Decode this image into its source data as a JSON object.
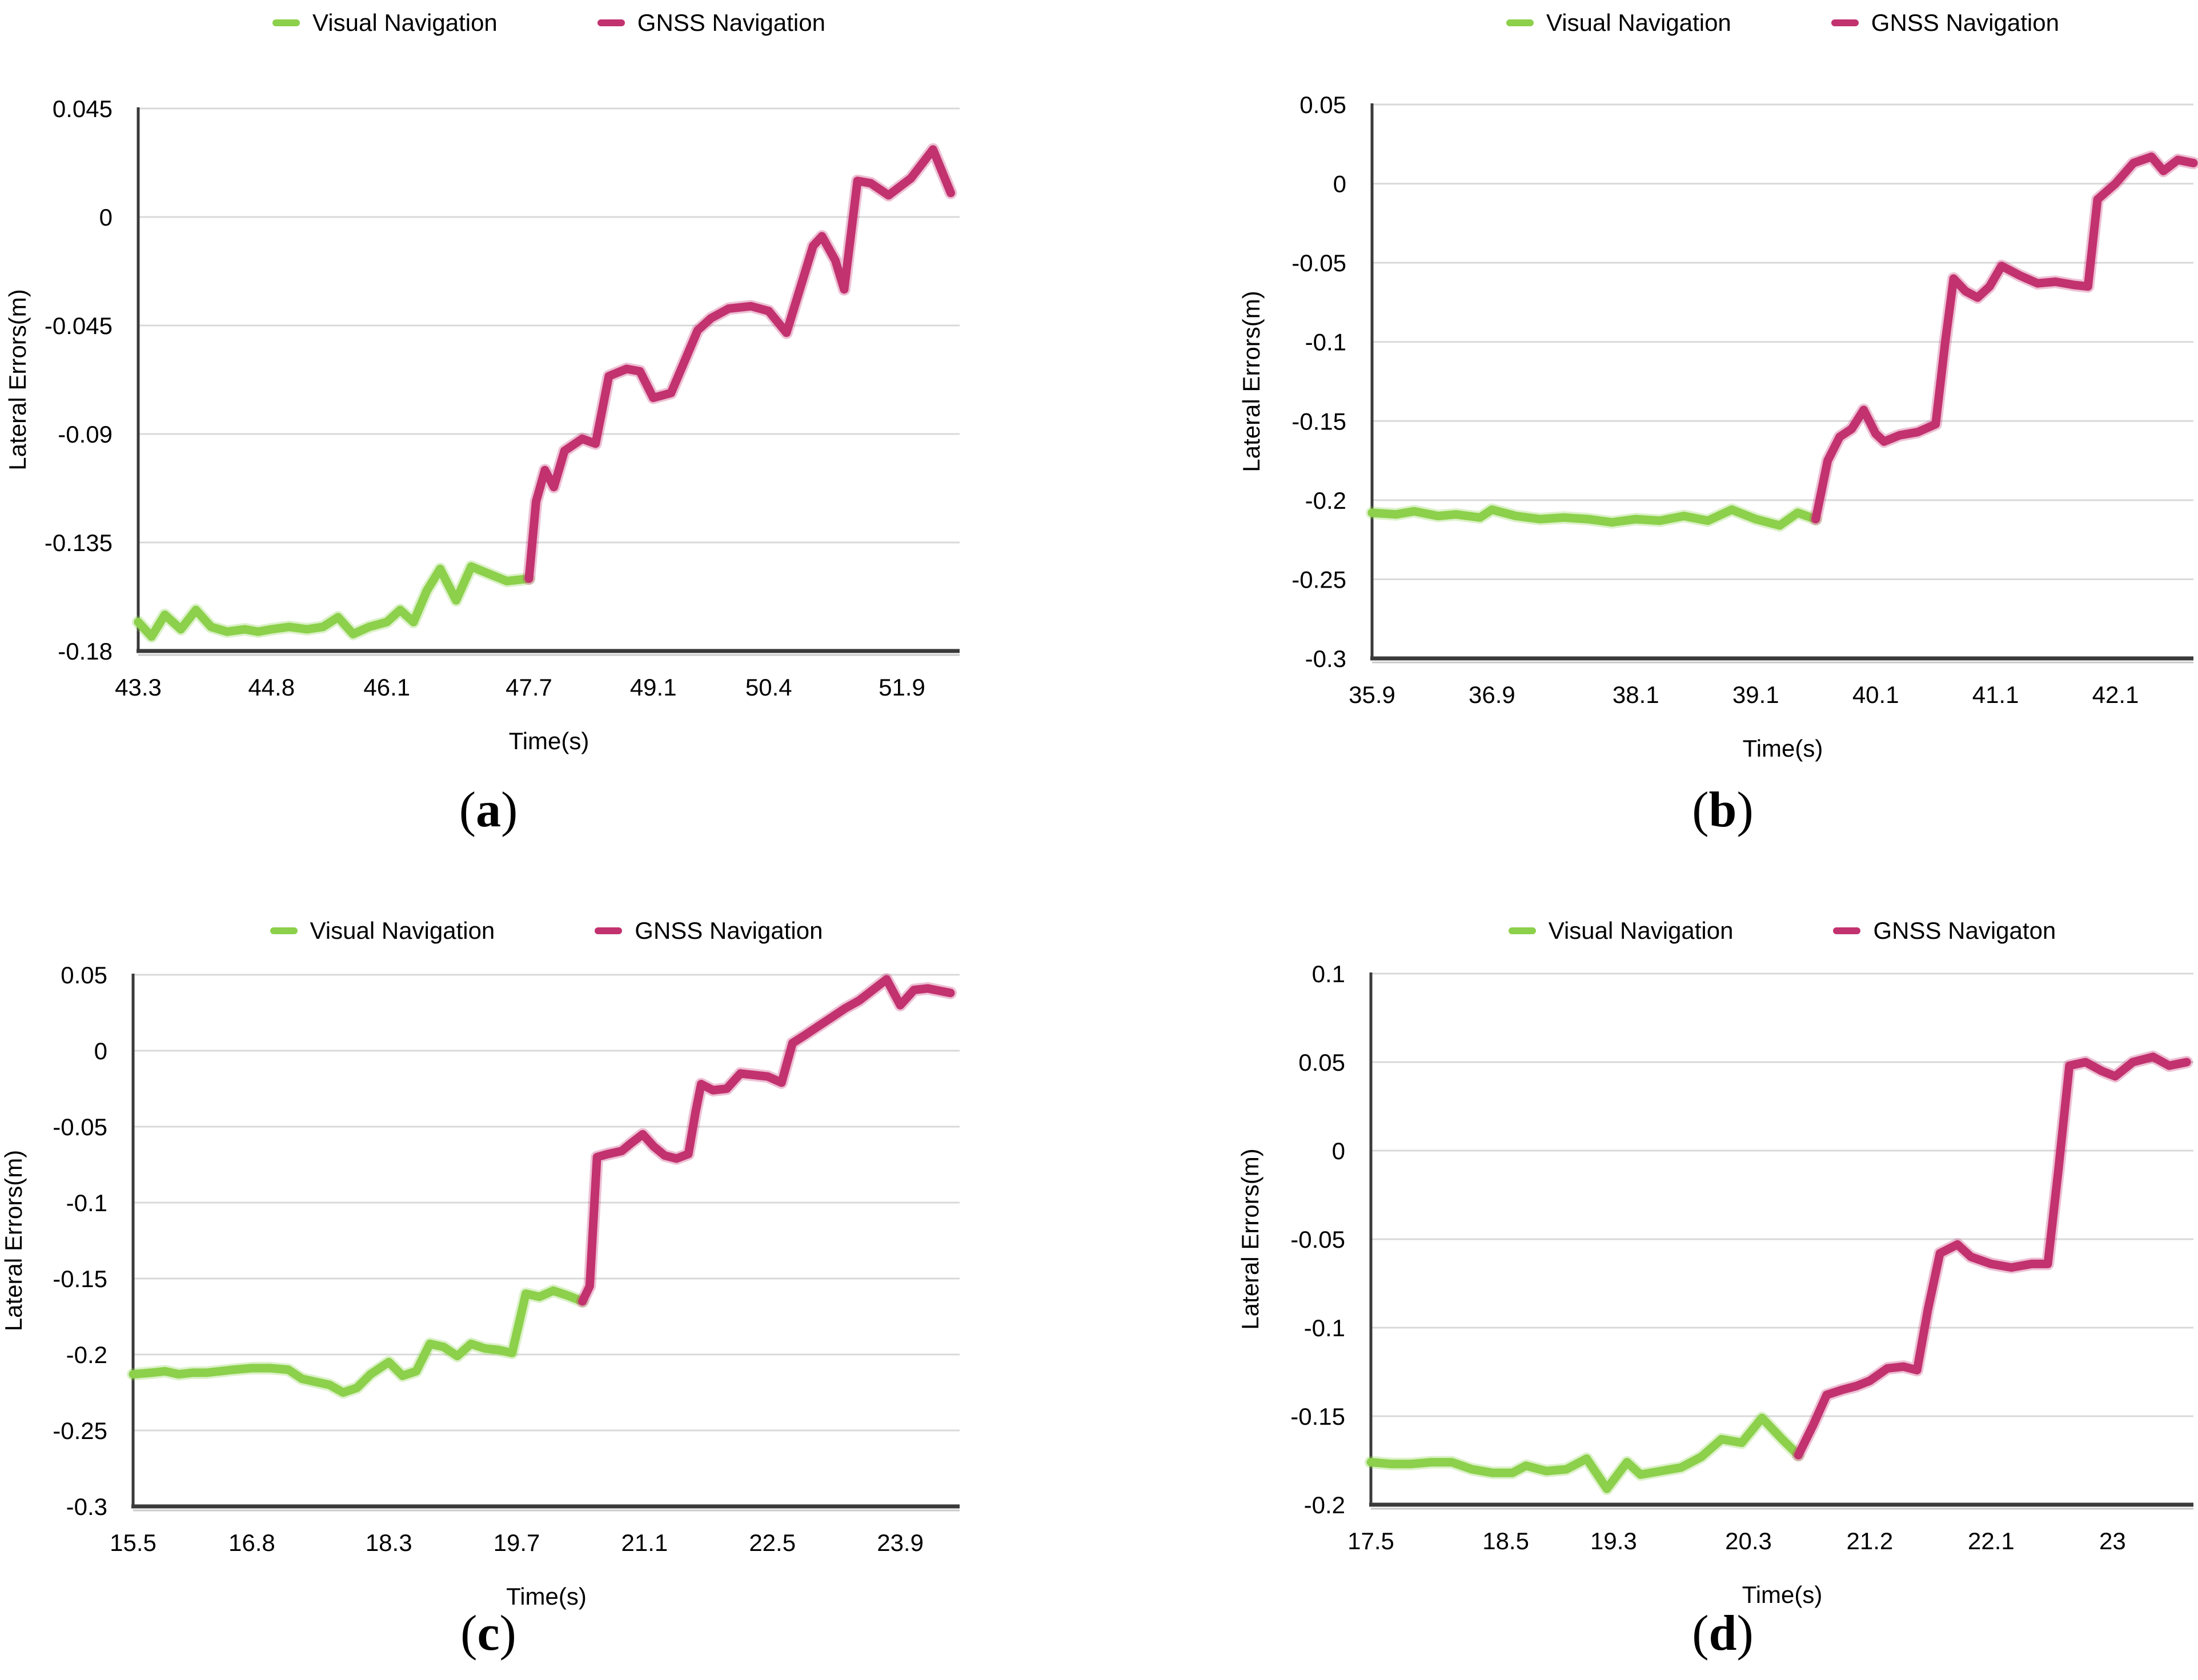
{
  "colors": {
    "visual": "#8CD04B",
    "gnss": "#C2326F",
    "grid": "#D9D9D9",
    "axis": "#3A3A3A",
    "axis_shadow": "#C9C9C9",
    "text": "#000000",
    "background": "#FFFFFF"
  },
  "chart_data": [
    {
      "id": "a",
      "type": "line",
      "caption": {
        "open": "(",
        "letter": "a",
        "close": ")"
      },
      "xlabel": "Time(s)",
      "ylabel": "Lateral Errors(m)",
      "legend": [
        {
          "series": "visual",
          "label": "Visual Navigation"
        },
        {
          "series": "gnss",
          "label": "GNSS Navigation"
        }
      ],
      "legend_position": "top",
      "grid": "horizontal",
      "xlim": [
        43.3,
        52.55
      ],
      "ylim": [
        -0.18,
        0.045
      ],
      "xticks": {
        "labels": [
          "43.3",
          "44.8",
          "46.1",
          "47.7",
          "49.1",
          "50.4",
          "51.9"
        ],
        "values": [
          43.3,
          44.8,
          46.1,
          47.7,
          49.1,
          50.4,
          51.9
        ]
      },
      "yticks": {
        "labels": [
          "0.045",
          "0",
          "-0.045",
          "-0.09",
          "-0.135",
          "-0.18"
        ],
        "values": [
          0.045,
          0,
          -0.045,
          -0.09,
          -0.135,
          -0.18
        ]
      },
      "series": {
        "visual": [
          [
            43.3,
            -0.168
          ],
          [
            43.45,
            -0.174
          ],
          [
            43.6,
            -0.165
          ],
          [
            43.78,
            -0.171
          ],
          [
            43.95,
            -0.163
          ],
          [
            44.12,
            -0.17
          ],
          [
            44.3,
            -0.172
          ],
          [
            44.5,
            -0.171
          ],
          [
            44.65,
            -0.172
          ],
          [
            44.8,
            -0.171
          ],
          [
            45.0,
            -0.17
          ],
          [
            45.2,
            -0.171
          ],
          [
            45.38,
            -0.17
          ],
          [
            45.55,
            -0.166
          ],
          [
            45.72,
            -0.173
          ],
          [
            45.9,
            -0.17
          ],
          [
            46.1,
            -0.168
          ],
          [
            46.25,
            -0.163
          ],
          [
            46.4,
            -0.168
          ],
          [
            46.55,
            -0.155
          ],
          [
            46.7,
            -0.146
          ],
          [
            46.88,
            -0.159
          ],
          [
            47.05,
            -0.145
          ],
          [
            47.25,
            -0.148
          ],
          [
            47.45,
            -0.151
          ],
          [
            47.7,
            -0.15
          ]
        ],
        "gnss": [
          [
            47.7,
            -0.15
          ],
          [
            47.78,
            -0.118
          ],
          [
            47.88,
            -0.105
          ],
          [
            47.98,
            -0.112
          ],
          [
            48.1,
            -0.097
          ],
          [
            48.3,
            -0.092
          ],
          [
            48.45,
            -0.094
          ],
          [
            48.6,
            -0.066
          ],
          [
            48.8,
            -0.063
          ],
          [
            48.95,
            -0.064
          ],
          [
            49.1,
            -0.075
          ],
          [
            49.3,
            -0.073
          ],
          [
            49.45,
            -0.06
          ],
          [
            49.6,
            -0.047
          ],
          [
            49.75,
            -0.042
          ],
          [
            49.95,
            -0.038
          ],
          [
            50.2,
            -0.037
          ],
          [
            50.4,
            -0.039
          ],
          [
            50.6,
            -0.048
          ],
          [
            50.75,
            -0.03
          ],
          [
            50.9,
            -0.012
          ],
          [
            51.0,
            -0.008
          ],
          [
            51.15,
            -0.018
          ],
          [
            51.25,
            -0.03
          ],
          [
            51.4,
            0.015
          ],
          [
            51.55,
            0.014
          ],
          [
            51.75,
            0.009
          ],
          [
            52.0,
            0.016
          ],
          [
            52.25,
            0.028
          ],
          [
            52.45,
            0.01
          ]
        ]
      }
    },
    {
      "id": "b",
      "type": "line",
      "caption": {
        "open": "(",
        "letter": "b",
        "close": ")"
      },
      "xlabel": "Time(s)",
      "ylabel": "Lateral Errors(m)",
      "legend": [
        {
          "series": "visual",
          "label": "Visual Navigation"
        },
        {
          "series": "gnss",
          "label": "GNSS Navigation"
        }
      ],
      "legend_position": "top",
      "grid": "horizontal",
      "xlim": [
        35.9,
        42.75
      ],
      "ylim": [
        -0.3,
        0.05
      ],
      "xticks": {
        "labels": [
          "35.9",
          "36.9",
          "38.1",
          "39.1",
          "40.1",
          "41.1",
          "42.1"
        ],
        "values": [
          35.9,
          36.9,
          38.1,
          39.1,
          40.1,
          41.1,
          42.1
        ]
      },
      "yticks": {
        "labels": [
          "0.05",
          "0",
          "-0.05",
          "-0.1",
          "-0.15",
          "-0.2",
          "-0.25",
          "-0.3"
        ],
        "values": [
          0.05,
          0,
          -0.05,
          -0.1,
          -0.15,
          -0.2,
          -0.25,
          -0.3
        ]
      },
      "series": {
        "visual": [
          [
            35.9,
            -0.208
          ],
          [
            36.1,
            -0.209
          ],
          [
            36.25,
            -0.207
          ],
          [
            36.45,
            -0.21
          ],
          [
            36.6,
            -0.209
          ],
          [
            36.8,
            -0.211
          ],
          [
            36.9,
            -0.206
          ],
          [
            37.1,
            -0.21
          ],
          [
            37.3,
            -0.212
          ],
          [
            37.5,
            -0.211
          ],
          [
            37.7,
            -0.212
          ],
          [
            37.9,
            -0.214
          ],
          [
            38.1,
            -0.212
          ],
          [
            38.3,
            -0.213
          ],
          [
            38.5,
            -0.21
          ],
          [
            38.7,
            -0.213
          ],
          [
            38.9,
            -0.206
          ],
          [
            39.1,
            -0.212
          ],
          [
            39.3,
            -0.216
          ],
          [
            39.45,
            -0.208
          ],
          [
            39.6,
            -0.212
          ]
        ],
        "gnss": [
          [
            39.6,
            -0.212
          ],
          [
            39.7,
            -0.175
          ],
          [
            39.8,
            -0.16
          ],
          [
            39.9,
            -0.155
          ],
          [
            40.0,
            -0.143
          ],
          [
            40.1,
            -0.158
          ],
          [
            40.17,
            -0.163
          ],
          [
            40.3,
            -0.159
          ],
          [
            40.45,
            -0.157
          ],
          [
            40.6,
            -0.152
          ],
          [
            40.68,
            -0.1
          ],
          [
            40.75,
            -0.06
          ],
          [
            40.85,
            -0.068
          ],
          [
            40.95,
            -0.072
          ],
          [
            41.05,
            -0.065
          ],
          [
            41.15,
            -0.052
          ],
          [
            41.3,
            -0.058
          ],
          [
            41.45,
            -0.063
          ],
          [
            41.6,
            -0.062
          ],
          [
            41.75,
            -0.064
          ],
          [
            41.87,
            -0.065
          ],
          [
            41.95,
            -0.01
          ],
          [
            42.1,
            0.0
          ],
          [
            42.25,
            0.013
          ],
          [
            42.4,
            0.017
          ],
          [
            42.5,
            0.008
          ],
          [
            42.62,
            0.015
          ],
          [
            42.75,
            0.013
          ]
        ]
      }
    },
    {
      "id": "c",
      "type": "line",
      "caption": {
        "open": "(",
        "letter": "c",
        "close": ")"
      },
      "xlabel": "Time(s)",
      "ylabel": "Lateral Errors(m)",
      "legend": [
        {
          "series": "visual",
          "label": "Visual Navigation"
        },
        {
          "series": "gnss",
          "label": "GNSS Navigation"
        }
      ],
      "legend_position": "top",
      "grid": "horizontal",
      "xlim": [
        15.5,
        24.55
      ],
      "ylim": [
        -0.3,
        0.05
      ],
      "xticks": {
        "labels": [
          "15.5",
          "16.8",
          "18.3",
          "19.7",
          "21.1",
          "22.5",
          "23.9"
        ],
        "values": [
          15.5,
          16.8,
          18.3,
          19.7,
          21.1,
          22.5,
          23.9
        ]
      },
      "yticks": {
        "labels": [
          "0.05",
          "0",
          "-0.05",
          "-0.1",
          "-0.15",
          "-0.2",
          "-0.25",
          "-0.3"
        ],
        "values": [
          0.05,
          0,
          -0.05,
          -0.1,
          -0.15,
          -0.2,
          -0.25,
          -0.3
        ]
      },
      "series": {
        "visual": [
          [
            15.5,
            -0.213
          ],
          [
            15.7,
            -0.212
          ],
          [
            15.85,
            -0.211
          ],
          [
            16.0,
            -0.213
          ],
          [
            16.15,
            -0.212
          ],
          [
            16.3,
            -0.212
          ],
          [
            16.45,
            -0.211
          ],
          [
            16.6,
            -0.21
          ],
          [
            16.8,
            -0.209
          ],
          [
            17.0,
            -0.209
          ],
          [
            17.2,
            -0.21
          ],
          [
            17.35,
            -0.216
          ],
          [
            17.5,
            -0.218
          ],
          [
            17.65,
            -0.22
          ],
          [
            17.8,
            -0.225
          ],
          [
            17.95,
            -0.222
          ],
          [
            18.1,
            -0.213
          ],
          [
            18.3,
            -0.205
          ],
          [
            18.45,
            -0.214
          ],
          [
            18.6,
            -0.211
          ],
          [
            18.75,
            -0.193
          ],
          [
            18.9,
            -0.195
          ],
          [
            19.05,
            -0.201
          ],
          [
            19.2,
            -0.193
          ],
          [
            19.35,
            -0.196
          ],
          [
            19.5,
            -0.197
          ],
          [
            19.65,
            -0.199
          ],
          [
            19.8,
            -0.16
          ],
          [
            19.95,
            -0.162
          ],
          [
            20.1,
            -0.158
          ],
          [
            20.25,
            -0.161
          ],
          [
            20.42,
            -0.165
          ]
        ],
        "gnss": [
          [
            20.42,
            -0.165
          ],
          [
            20.5,
            -0.155
          ],
          [
            20.58,
            -0.07
          ],
          [
            20.7,
            -0.068
          ],
          [
            20.85,
            -0.066
          ],
          [
            20.95,
            -0.061
          ],
          [
            21.08,
            -0.055
          ],
          [
            21.2,
            -0.063
          ],
          [
            21.32,
            -0.069
          ],
          [
            21.45,
            -0.071
          ],
          [
            21.58,
            -0.068
          ],
          [
            21.66,
            -0.04
          ],
          [
            21.72,
            -0.022
          ],
          [
            21.85,
            -0.026
          ],
          [
            22.0,
            -0.025
          ],
          [
            22.15,
            -0.015
          ],
          [
            22.3,
            -0.016
          ],
          [
            22.45,
            -0.017
          ],
          [
            22.6,
            -0.021
          ],
          [
            22.72,
            0.005
          ],
          [
            22.85,
            0.01
          ],
          [
            23.0,
            0.016
          ],
          [
            23.15,
            0.022
          ],
          [
            23.3,
            0.028
          ],
          [
            23.45,
            0.033
          ],
          [
            23.6,
            0.04
          ],
          [
            23.75,
            0.047
          ],
          [
            23.9,
            0.03
          ],
          [
            24.05,
            0.04
          ],
          [
            24.2,
            0.041
          ],
          [
            24.45,
            0.038
          ]
        ]
      }
    },
    {
      "id": "d",
      "type": "line",
      "caption": {
        "open": "(",
        "letter": "d",
        "close": ")"
      },
      "xlabel": "Time(s)",
      "ylabel": "Lateral Errors(m)",
      "legend": [
        {
          "series": "visual",
          "label": "Visual Navigation"
        },
        {
          "series": "gnss",
          "label": "GNSS Navigaton"
        }
      ],
      "legend_position": "top",
      "grid": "horizontal",
      "xlim": [
        17.5,
        23.6
      ],
      "ylim": [
        -0.2,
        0.1
      ],
      "xticks": {
        "labels": [
          "17.5",
          "18.5",
          "19.3",
          "20.3",
          "21.2",
          "22.1",
          "23"
        ],
        "values": [
          17.5,
          18.5,
          19.3,
          20.3,
          21.2,
          22.1,
          23
        ]
      },
      "yticks": {
        "labels": [
          "0.1",
          "0.05",
          "0",
          "-0.05",
          "-0.1",
          "-0.15",
          "-0.2"
        ],
        "values": [
          0.1,
          0.05,
          0,
          -0.05,
          -0.1,
          -0.15,
          -0.2
        ]
      },
      "series": {
        "visual": [
          [
            17.5,
            -0.176
          ],
          [
            17.65,
            -0.177
          ],
          [
            17.8,
            -0.177
          ],
          [
            17.95,
            -0.176
          ],
          [
            18.1,
            -0.176
          ],
          [
            18.25,
            -0.18
          ],
          [
            18.4,
            -0.182
          ],
          [
            18.55,
            -0.182
          ],
          [
            18.65,
            -0.178
          ],
          [
            18.8,
            -0.181
          ],
          [
            18.95,
            -0.18
          ],
          [
            19.1,
            -0.174
          ],
          [
            19.25,
            -0.191
          ],
          [
            19.4,
            -0.176
          ],
          [
            19.5,
            -0.183
          ],
          [
            19.65,
            -0.181
          ],
          [
            19.8,
            -0.179
          ],
          [
            19.95,
            -0.173
          ],
          [
            20.1,
            -0.163
          ],
          [
            20.25,
            -0.165
          ],
          [
            20.4,
            -0.151
          ],
          [
            20.55,
            -0.163
          ],
          [
            20.67,
            -0.172
          ]
        ],
        "gnss": [
          [
            20.67,
            -0.172
          ],
          [
            20.78,
            -0.155
          ],
          [
            20.88,
            -0.138
          ],
          [
            21.0,
            -0.135
          ],
          [
            21.1,
            -0.133
          ],
          [
            21.2,
            -0.13
          ],
          [
            21.33,
            -0.123
          ],
          [
            21.45,
            -0.122
          ],
          [
            21.55,
            -0.124
          ],
          [
            21.63,
            -0.09
          ],
          [
            21.72,
            -0.058
          ],
          [
            21.85,
            -0.053
          ],
          [
            21.95,
            -0.06
          ],
          [
            22.1,
            -0.064
          ],
          [
            22.25,
            -0.066
          ],
          [
            22.4,
            -0.064
          ],
          [
            22.52,
            -0.064
          ],
          [
            22.6,
            -0.01
          ],
          [
            22.68,
            0.048
          ],
          [
            22.8,
            0.05
          ],
          [
            22.92,
            0.045
          ],
          [
            23.02,
            0.042
          ],
          [
            23.15,
            0.05
          ],
          [
            23.3,
            0.053
          ],
          [
            23.42,
            0.048
          ],
          [
            23.55,
            0.05
          ]
        ]
      }
    }
  ]
}
